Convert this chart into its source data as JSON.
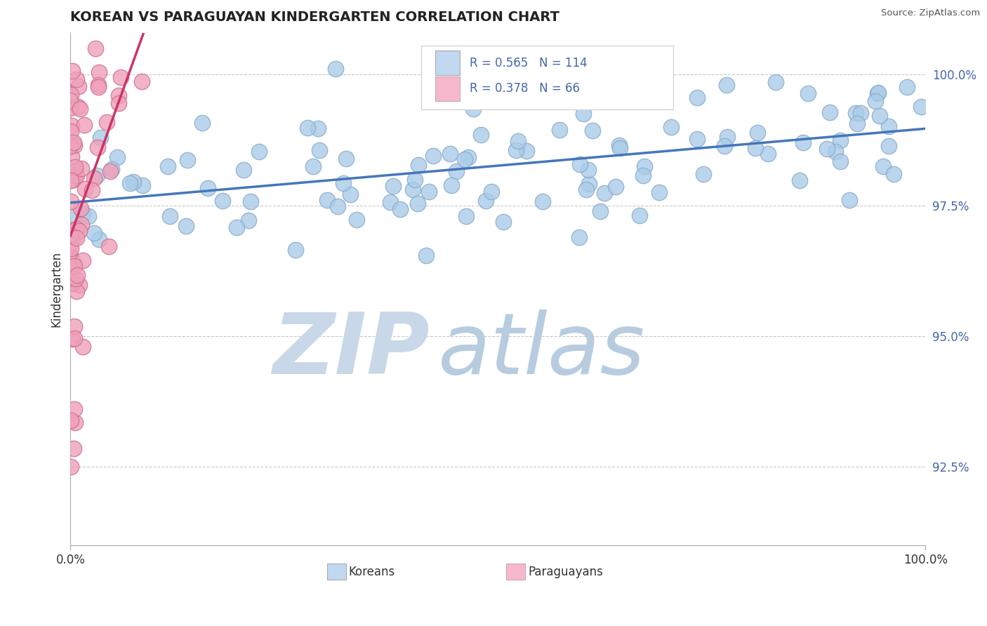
{
  "title": "KOREAN VS PARAGUAYAN KINDERGARTEN CORRELATION CHART",
  "source": "Source: ZipAtlas.com",
  "ylabel": "Kindergarten",
  "y_tick_labels": [
    "92.5%",
    "95.0%",
    "97.5%",
    "100.0%"
  ],
  "y_tick_values": [
    0.925,
    0.95,
    0.975,
    1.0
  ],
  "xlim": [
    0.0,
    1.0
  ],
  "ylim": [
    0.91,
    1.008
  ],
  "korean_R": 0.565,
  "korean_N": 114,
  "paraguayan_R": 0.378,
  "paraguayan_N": 66,
  "korean_color": "#aacce8",
  "paraguayan_color": "#f0a0b8",
  "korean_edge": "#88aacc",
  "paraguayan_edge": "#cc7090",
  "trend_korean_color": "#4477bb",
  "trend_paraguayan_color": "#cc3366",
  "legend_box_korean": "#c0d8f0",
  "legend_box_paraguayan": "#f5b8cc",
  "watermark_zip_color": "#c8d8e8",
  "watermark_atlas_color": "#b8cce0",
  "background": "#ffffff",
  "grid_color": "#bbbbbb",
  "title_color": "#222222",
  "axis_label_color": "#4466aa",
  "source_color": "#555555"
}
